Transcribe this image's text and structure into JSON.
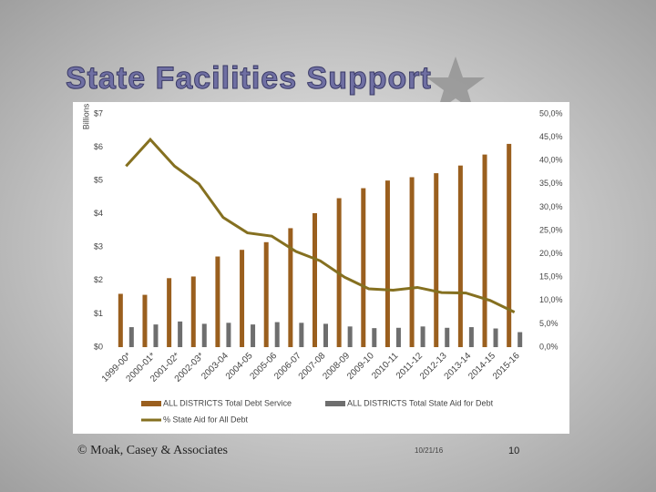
{
  "slide": {
    "title": "State Facilities Support",
    "copyright": "© Moak, Casey & Associates",
    "date": "10/21/16",
    "page": "10"
  },
  "chart_data": {
    "type": "bar",
    "legend": "bottom",
    "y_label": "Billions",
    "categories": [
      "1999-00*",
      "2000-01*",
      "2001-02*",
      "2002-03*",
      "2003-04",
      "2004-05",
      "2005-06",
      "2006-07",
      "2007-08",
      "2008-09",
      "2009-10",
      "2010-11",
      "2011-12",
      "2012-13",
      "2013-14",
      "2014-15",
      "2015-16"
    ],
    "series": [
      {
        "name": "ALL DISTRICTS Total Debt Service",
        "type": "bar",
        "color": "#9a5f1e",
        "values": [
          1.6,
          1.57,
          2.07,
          2.12,
          2.72,
          2.92,
          3.15,
          3.57,
          4.02,
          4.47,
          4.77,
          5.0,
          5.1,
          5.22,
          5.45,
          5.78,
          6.1
        ]
      },
      {
        "name": "ALL DISTRICTS Total State Aid for Debt",
        "type": "bar",
        "color": "#6e6e6e",
        "values": [
          0.6,
          0.68,
          0.77,
          0.7,
          0.73,
          0.68,
          0.75,
          0.73,
          0.7,
          0.62,
          0.57,
          0.58,
          0.62,
          0.58,
          0.6,
          0.56,
          0.45
        ]
      },
      {
        "name": "% State Aid for All Debt",
        "type": "line",
        "axis": "y2",
        "color": "#857020",
        "values": [
          38.8,
          44.5,
          38.8,
          35.0,
          27.8,
          24.5,
          23.8,
          20.5,
          18.5,
          15.0,
          12.5,
          12.2,
          12.8,
          11.7,
          11.6,
          10.0,
          7.5
        ]
      }
    ],
    "ylim": [
      0,
      7
    ],
    "yticks": [
      {
        "value": 0,
        "label": "$0"
      },
      {
        "value": 1,
        "label": "$1"
      },
      {
        "value": 2,
        "label": "$2"
      },
      {
        "value": 3,
        "label": "$3"
      },
      {
        "value": 4,
        "label": "$4"
      },
      {
        "value": 5,
        "label": "$5"
      },
      {
        "value": 6,
        "label": "$6"
      },
      {
        "value": 7,
        "label": "$7"
      }
    ],
    "y2lim": [
      0,
      50
    ],
    "y2ticks": [
      {
        "value": 0,
        "label": "0,0%"
      },
      {
        "value": 5,
        "label": "5,0%"
      },
      {
        "value": 10,
        "label": "10,0%"
      },
      {
        "value": 15,
        "label": "15,0%"
      },
      {
        "value": 20,
        "label": "20,0%"
      },
      {
        "value": 25,
        "label": "25,0%"
      },
      {
        "value": 30,
        "label": "30,0%"
      },
      {
        "value": 35,
        "label": "35,0%"
      },
      {
        "value": 40,
        "label": "40,0%"
      },
      {
        "value": 45,
        "label": "45,0%"
      },
      {
        "value": 50,
        "label": "50,0%"
      }
    ]
  }
}
